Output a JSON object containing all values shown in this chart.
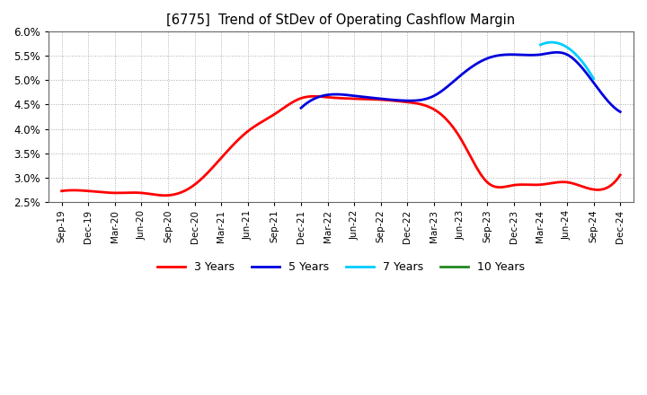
{
  "title": "[6775]  Trend of StDev of Operating Cashflow Margin",
  "background_color": "#ffffff",
  "grid_color": "#999999",
  "x_labels": [
    "Sep-19",
    "Dec-19",
    "Mar-20",
    "Jun-20",
    "Sep-20",
    "Dec-20",
    "Mar-21",
    "Jun-21",
    "Sep-21",
    "Dec-21",
    "Mar-22",
    "Jun-22",
    "Sep-22",
    "Dec-22",
    "Mar-23",
    "Jun-23",
    "Sep-23",
    "Dec-23",
    "Mar-24",
    "Jun-24",
    "Sep-24",
    "Dec-24"
  ],
  "ylim": [
    0.025,
    0.06
  ],
  "yticks": [
    0.025,
    0.03,
    0.035,
    0.04,
    0.045,
    0.05,
    0.055,
    0.06
  ],
  "series_3y": {
    "color": "#ff0000",
    "lw": 2.0,
    "x": [
      0,
      1,
      2,
      3,
      4,
      5,
      6,
      7,
      8,
      9,
      10,
      11,
      12,
      13,
      14,
      15,
      16,
      17,
      18,
      19,
      20,
      21
    ],
    "y": [
      0.0272,
      0.0272,
      0.0268,
      0.0268,
      0.0263,
      0.0275,
      0.033,
      0.039,
      0.042,
      0.0462,
      0.0463,
      0.0462,
      0.0463,
      0.0455,
      0.045,
      0.035,
      0.0285,
      0.0285,
      0.0285,
      0.0285,
      0.0275,
      0.0305
    ]
  },
  "series_5y": {
    "color": "#0000dd",
    "lw": 2.0,
    "x": [
      9,
      10,
      11,
      12,
      13,
      14,
      15,
      16,
      17,
      18,
      19,
      20,
      21
    ],
    "y": [
      0.0443,
      0.047,
      0.0468,
      0.0462,
      0.0458,
      0.047,
      0.051,
      0.0545,
      0.0552,
      0.0553,
      0.0552,
      0.0495,
      0.0435
    ]
  },
  "series_7y": {
    "color": "#00ccff",
    "lw": 2.0,
    "x": [
      18,
      19,
      20
    ],
    "y": [
      0.0573,
      0.0568,
      0.0503
    ]
  },
  "series_10y": {
    "color": "#228822",
    "lw": 2.0,
    "x": [],
    "y": []
  },
  "legend_labels": [
    "3 Years",
    "5 Years",
    "7 Years",
    "10 Years"
  ],
  "legend_colors": [
    "#ff0000",
    "#0000dd",
    "#00ccff",
    "#228822"
  ]
}
